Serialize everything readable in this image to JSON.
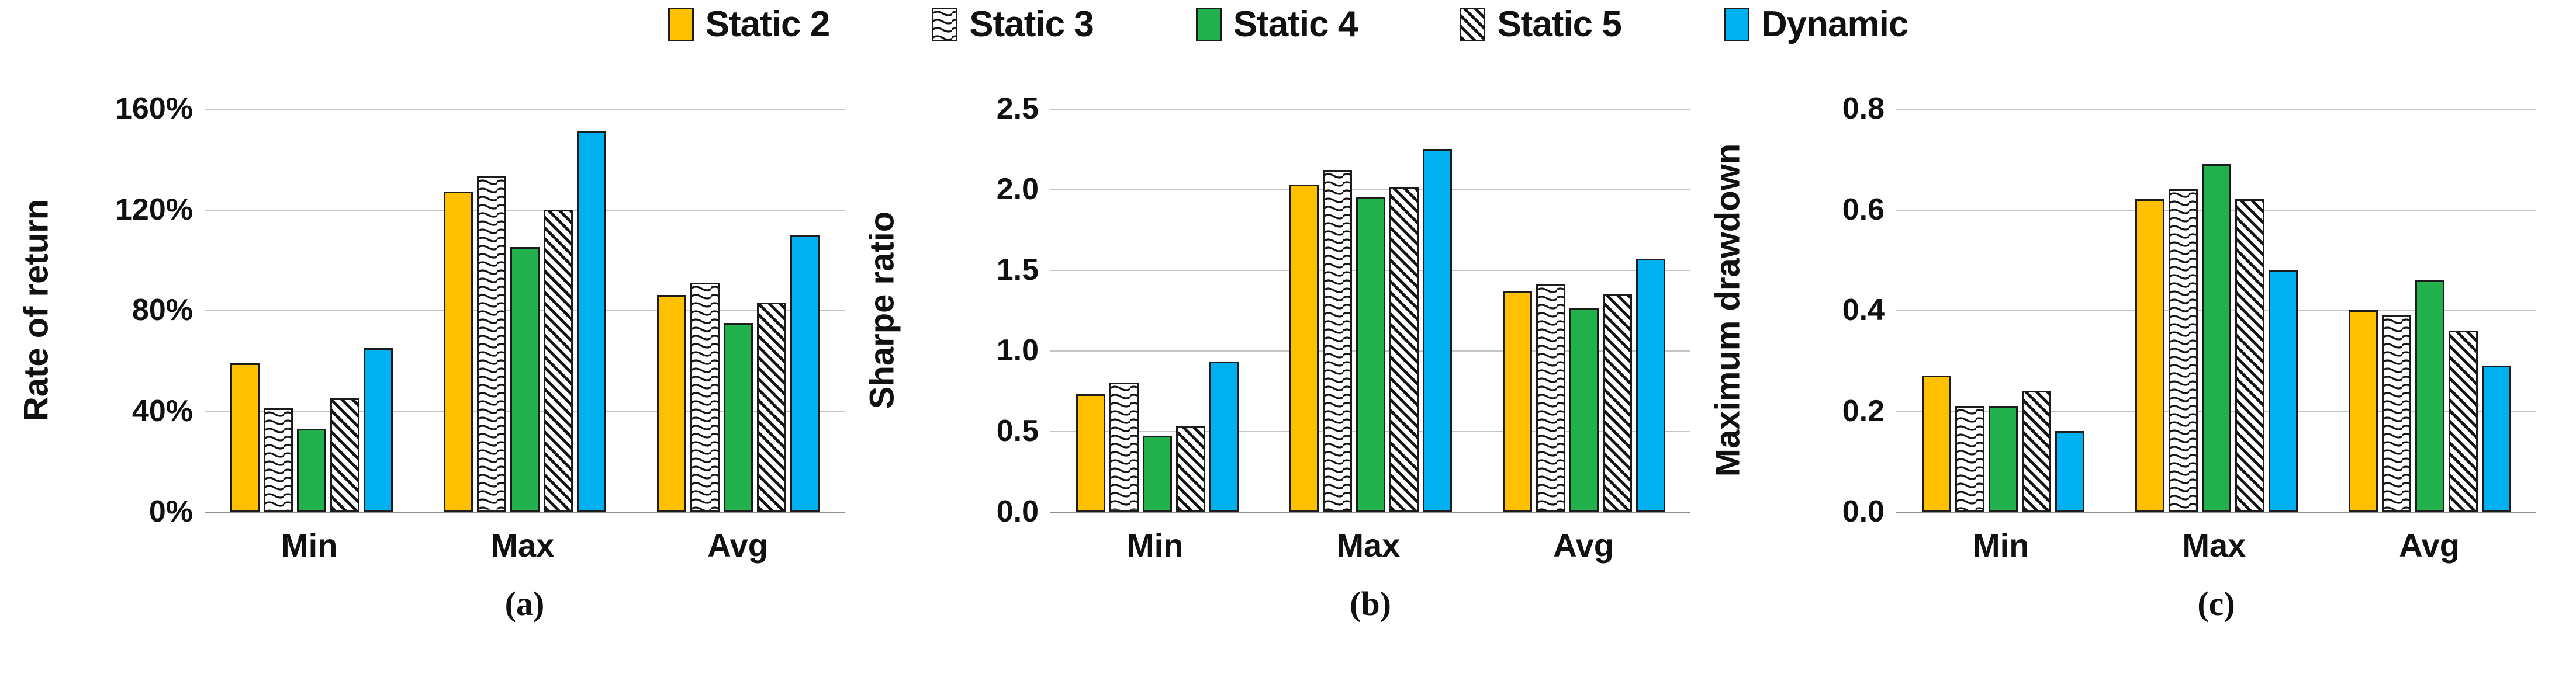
{
  "legend": {
    "items": [
      {
        "label": "Static 2",
        "fill": "solid",
        "color": "#FFC000"
      },
      {
        "label": "Static 3",
        "fill": "wave",
        "color": "#FFFFFF",
        "line_color": "#141414"
      },
      {
        "label": "Static 4",
        "fill": "solid",
        "color": "#22B14C"
      },
      {
        "label": "Static 5",
        "fill": "hatch",
        "color": "#FFFFFF",
        "line_color": "#141414"
      },
      {
        "label": "Dynamic",
        "fill": "solid",
        "color": "#00B0F0"
      }
    ]
  },
  "chart_data": [
    {
      "id": "a",
      "type": "bar",
      "caption": "(a)",
      "ylabel": "Rate of return",
      "categories": [
        "Min",
        "Max",
        "Avg"
      ],
      "y_ticks": [
        "160%",
        "120%",
        "80%",
        "40%",
        "0%"
      ],
      "ymin": 0,
      "ymax": 160,
      "grid_step": 40,
      "value_unit": "%",
      "grid": true,
      "legend_position": "top",
      "series": [
        {
          "name": "Static 2",
          "values": [
            59,
            127,
            86
          ]
        },
        {
          "name": "Static 3",
          "values": [
            41,
            133,
            91
          ]
        },
        {
          "name": "Static 4",
          "values": [
            33,
            105,
            75
          ]
        },
        {
          "name": "Static 5",
          "values": [
            45,
            120,
            83
          ]
        },
        {
          "name": "Dynamic",
          "values": [
            65,
            151,
            110
          ]
        }
      ]
    },
    {
      "id": "b",
      "type": "bar",
      "caption": "(b)",
      "ylabel": "Sharpe ratio",
      "categories": [
        "Min",
        "Max",
        "Avg"
      ],
      "y_ticks": [
        "2.5",
        "2.0",
        "1.5",
        "1.0",
        "0.5",
        "0.0"
      ],
      "ymin": 0,
      "ymax": 2.5,
      "grid_step": 0.5,
      "value_unit": "",
      "grid": true,
      "legend_position": "top",
      "series": [
        {
          "name": "Static 2",
          "values": [
            0.73,
            2.03,
            1.37
          ]
        },
        {
          "name": "Static 3",
          "values": [
            0.8,
            2.12,
            1.41
          ]
        },
        {
          "name": "Static 4",
          "values": [
            0.47,
            1.95,
            1.26
          ]
        },
        {
          "name": "Static 5",
          "values": [
            0.53,
            2.01,
            1.35
          ]
        },
        {
          "name": "Dynamic",
          "values": [
            0.93,
            2.25,
            1.57
          ]
        }
      ]
    },
    {
      "id": "c",
      "type": "bar",
      "caption": "(c)",
      "ylabel": "Maximum drawdown",
      "categories": [
        "Min",
        "Max",
        "Avg"
      ],
      "y_ticks": [
        "0.8",
        "0.6",
        "0.4",
        "0.2",
        "0.0"
      ],
      "ymin": 0,
      "ymax": 0.8,
      "grid_step": 0.2,
      "value_unit": "",
      "grid": true,
      "legend_position": "top",
      "series": [
        {
          "name": "Static 2",
          "values": [
            0.27,
            0.62,
            0.4
          ]
        },
        {
          "name": "Static 3",
          "values": [
            0.21,
            0.64,
            0.39
          ]
        },
        {
          "name": "Static 4",
          "values": [
            0.21,
            0.69,
            0.46
          ]
        },
        {
          "name": "Static 5",
          "values": [
            0.24,
            0.62,
            0.36
          ]
        },
        {
          "name": "Dynamic",
          "values": [
            0.16,
            0.48,
            0.29
          ]
        }
      ]
    }
  ],
  "colors": {
    "grid": "#c4c4c4",
    "axis_line": "#8f8f8f",
    "bar_border": "#1c1c1c",
    "text": "#111111"
  }
}
